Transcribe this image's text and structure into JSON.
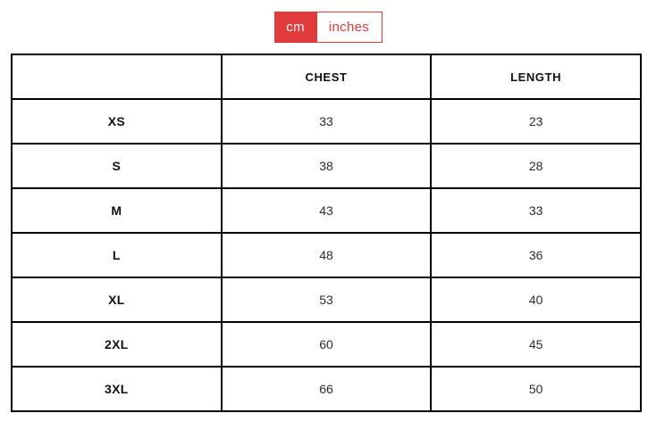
{
  "toggle": {
    "accent_color": "#e23b3b",
    "options": [
      {
        "label": "cm",
        "selected": true
      },
      {
        "label": "inches",
        "selected": false
      }
    ]
  },
  "table": {
    "columns": [
      "",
      "CHEST",
      "LENGTH"
    ],
    "rows": [
      {
        "size": "XS",
        "chest": "33",
        "length": "23"
      },
      {
        "size": "S",
        "chest": "38",
        "length": "28"
      },
      {
        "size": "M",
        "chest": "43",
        "length": "33"
      },
      {
        "size": "L",
        "chest": "48",
        "length": "36"
      },
      {
        "size": "XL",
        "chest": "53",
        "length": "40"
      },
      {
        "size": "2XL",
        "chest": "60",
        "length": "45"
      },
      {
        "size": "3XL",
        "chest": "66",
        "length": "50"
      }
    ]
  }
}
